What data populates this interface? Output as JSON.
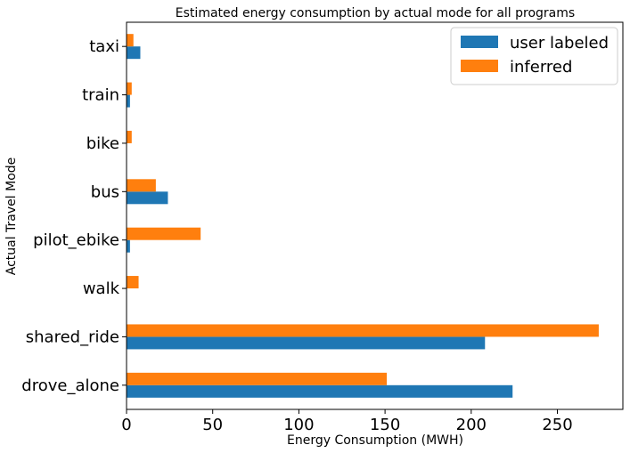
{
  "chart_data": {
    "type": "bar",
    "orientation": "horizontal",
    "title": "Estimated energy consumption by actual mode for all programs",
    "xlabel": "Energy Consumption (MWH)",
    "ylabel": "Actual Travel Mode",
    "categories": [
      "drove_alone",
      "shared_ride",
      "walk",
      "pilot_ebike",
      "bus",
      "bike",
      "train",
      "taxi"
    ],
    "series": [
      {
        "name": "user labeled",
        "color": "#1f77b4",
        "values": [
          224,
          208,
          0,
          2,
          24,
          0,
          2,
          8
        ]
      },
      {
        "name": "inferred",
        "color": "#ff7f0e",
        "values": [
          151,
          274,
          7,
          43,
          17,
          3,
          3,
          4
        ]
      }
    ],
    "xlim": [
      0,
      288
    ],
    "xticks": [
      0,
      50,
      100,
      150,
      200,
      250
    ],
    "grid": false,
    "legend_position": "top-right"
  }
}
